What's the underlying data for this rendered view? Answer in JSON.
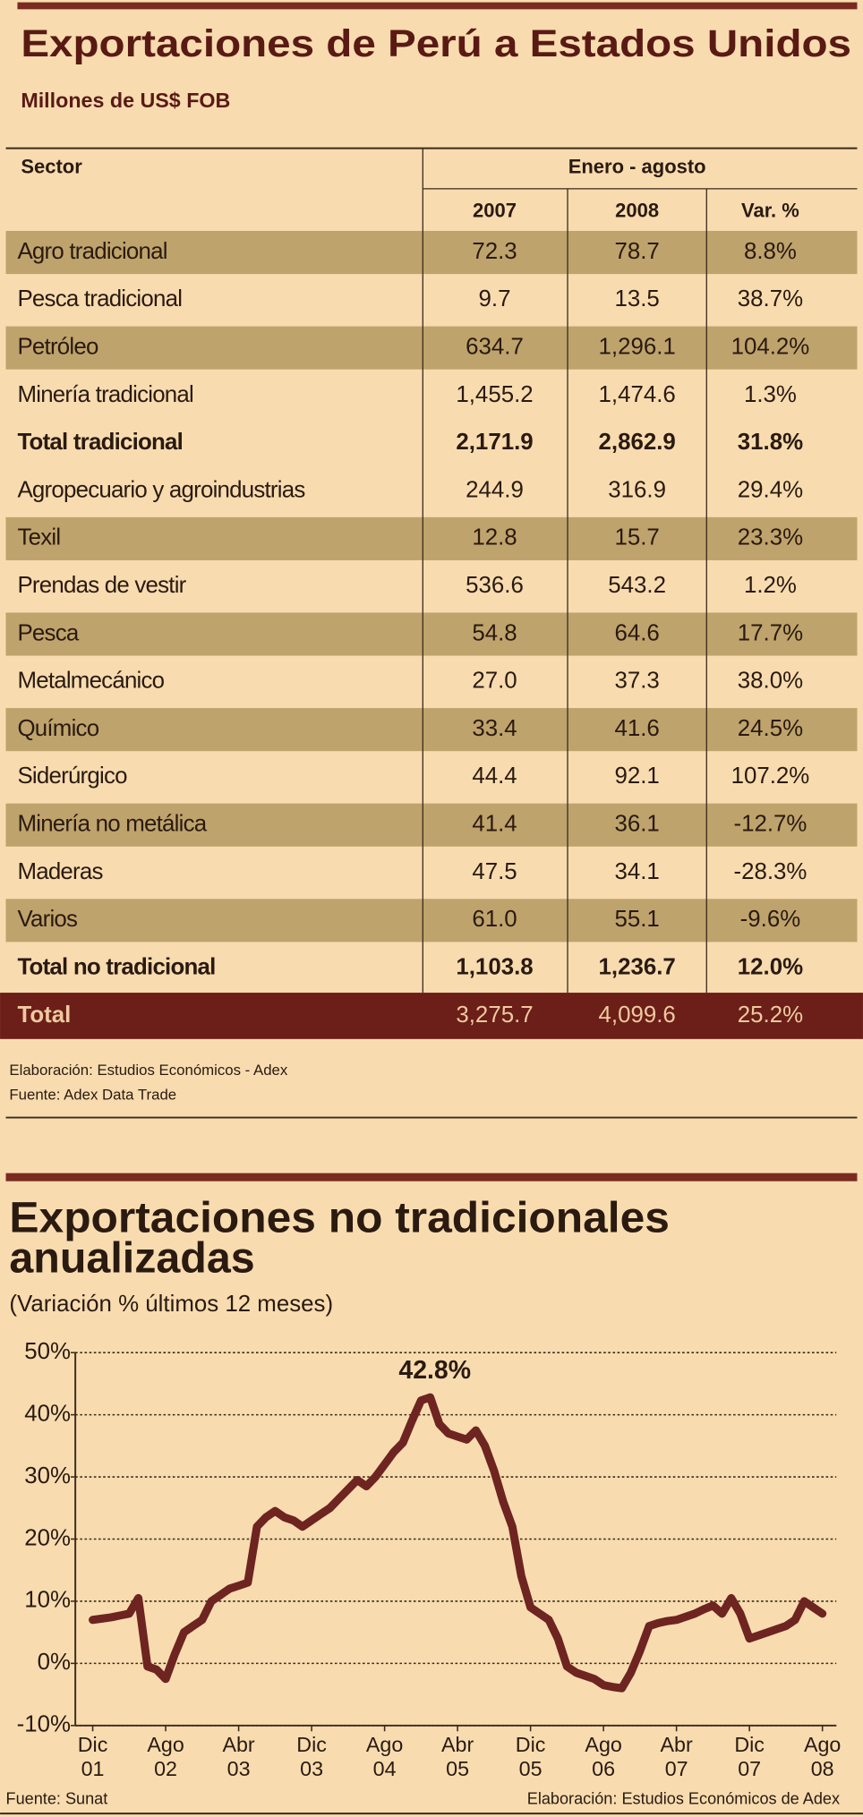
{
  "table": {
    "title": "Exportaciones de Perú a Estados Unidos",
    "subtitle": "Millones de US$ FOB",
    "header": {
      "sector": "Sector",
      "period": "Enero - agosto",
      "columns": [
        "2007",
        "2008",
        "Var. %"
      ]
    },
    "rows": [
      [
        "Agro tradicional",
        "72.3",
        "78.7",
        "8.8%"
      ],
      [
        "Pesca tradicional",
        "9.7",
        "13.5",
        "38.7%"
      ],
      [
        "Petróleo",
        "634.7",
        "1,296.1",
        "104.2%"
      ],
      [
        "Minería tradicional",
        "1,455.2",
        "1,474.6",
        "1.3%"
      ],
      [
        "Total tradicional",
        "2,171.9",
        "2,862.9",
        "31.8%"
      ],
      [
        "Agropecuario y agroindustrias",
        "244.9",
        "316.9",
        "29.4%"
      ],
      [
        "Texil",
        "12.8",
        "15.7",
        "23.3%"
      ],
      [
        "Prendas de vestir",
        "536.6",
        "543.2",
        "1.2%"
      ],
      [
        "Pesca",
        "54.8",
        "64.6",
        "17.7%"
      ],
      [
        "Metalmecánico",
        "27.0",
        "37.3",
        "38.0%"
      ],
      [
        "Químico",
        "33.4",
        "41.6",
        "24.5%"
      ],
      [
        "Siderúrgico",
        "44.4",
        "92.1",
        "107.2%"
      ],
      [
        "Minería no metálica",
        "41.4",
        "36.1",
        "-12.7%"
      ],
      [
        "Maderas",
        "47.5",
        "34.1",
        "-28.3%"
      ],
      [
        "Varios",
        "61.0",
        "55.1",
        "-9.6%"
      ],
      [
        "Total no tradicional",
        "1,103.8",
        "1,236.7",
        "12.0%"
      ]
    ],
    "total": [
      "Total",
      "3,275.7",
      "4,099.6",
      "25.2%"
    ],
    "notes": [
      "Elaboración: Estudios Económicos - Adex",
      "Fuente: Adex Data Trade"
    ]
  },
  "chart_data": {
    "type": "line",
    "title": [
      "Exportaciones no tradicionales",
      "anualizadas"
    ],
    "subtitle": "(Variación % últimos 12 meses)",
    "categories": [
      "Dic 01",
      null,
      null,
      null,
      null,
      null,
      null,
      null,
      "Ago 02",
      null,
      null,
      null,
      null,
      null,
      null,
      null,
      "Abr 03",
      null,
      null,
      null,
      null,
      null,
      null,
      null,
      "Dic 03",
      null,
      null,
      null,
      null,
      null,
      null,
      null,
      "Ago 04",
      null,
      null,
      null,
      null,
      null,
      null,
      null,
      "Abr 05",
      null,
      null,
      null,
      null,
      null,
      null,
      null,
      "Dic 05",
      null,
      null,
      null,
      null,
      null,
      null,
      null,
      "Ago 06",
      null,
      null,
      null,
      null,
      null,
      null,
      null,
      "Abr 07",
      null,
      null,
      null,
      null,
      null,
      null,
      null,
      "Dic 07",
      null,
      null,
      null,
      null,
      null,
      null,
      null,
      "Ago 08"
    ],
    "values": [
      7,
      7.2,
      7.4,
      7.7,
      8,
      10.5,
      -0.5,
      -1,
      -2.5,
      1.5,
      5,
      6,
      7,
      10,
      11,
      12,
      12.5,
      13,
      22,
      23.5,
      24.5,
      23.5,
      23,
      22,
      23,
      24,
      25,
      26.5,
      28,
      29.5,
      28.5,
      30,
      32,
      34,
      35.5,
      39,
      42.3,
      42.8,
      38.5,
      37,
      36.5,
      36,
      37.5,
      35,
      31,
      26,
      22,
      14,
      9,
      8,
      7,
      4,
      -0.5,
      -1.5,
      -2,
      -2.5,
      -3.5,
      -3.8,
      -4,
      -1.5,
      2,
      6,
      6.5,
      6.8,
      7,
      7.5,
      8,
      8.7,
      9.3,
      8,
      10.5,
      8,
      4,
      4.5,
      5,
      5.5,
      6,
      7,
      10,
      9,
      8
    ],
    "color": "#6e2420",
    "ylim": [
      -10,
      50
    ],
    "yticks": [
      {
        "value": -10,
        "label": "-10%"
      },
      {
        "value": 0,
        "label": "0%"
      },
      {
        "value": 10,
        "label": "10%"
      },
      {
        "value": 20,
        "label": "20%"
      },
      {
        "value": 30,
        "label": "30%"
      },
      {
        "value": 40,
        "label": "40%"
      },
      {
        "value": 50,
        "label": "50%"
      }
    ],
    "grid": true,
    "annotation": {
      "index": 37,
      "text": "42.8%"
    },
    "source": "Fuente: Sunat",
    "credit": "Elaboración: Estudios Económicos de Adex"
  }
}
